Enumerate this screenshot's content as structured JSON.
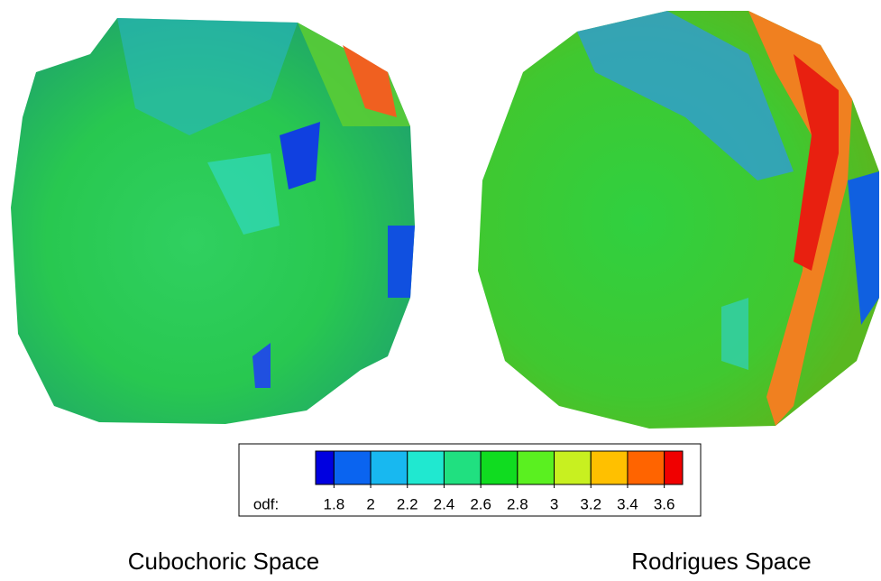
{
  "colorbar": {
    "label": "odf:",
    "lim": [
      1.7,
      3.7
    ],
    "ticks": [
      1.8,
      2,
      2.2,
      2.4,
      2.6,
      2.8,
      3,
      3.2,
      3.4,
      3.6
    ],
    "colors": [
      "#0000e0",
      "#0a64f0",
      "#18b8f0",
      "#20e8d0",
      "#20e080",
      "#10dc20",
      "#5af020",
      "#c8f020",
      "#ffc000",
      "#ff6400",
      "#f00000"
    ]
  },
  "panels": [
    {
      "caption": "Cubochoric Space"
    },
    {
      "caption": "Rodrigues Space"
    }
  ]
}
